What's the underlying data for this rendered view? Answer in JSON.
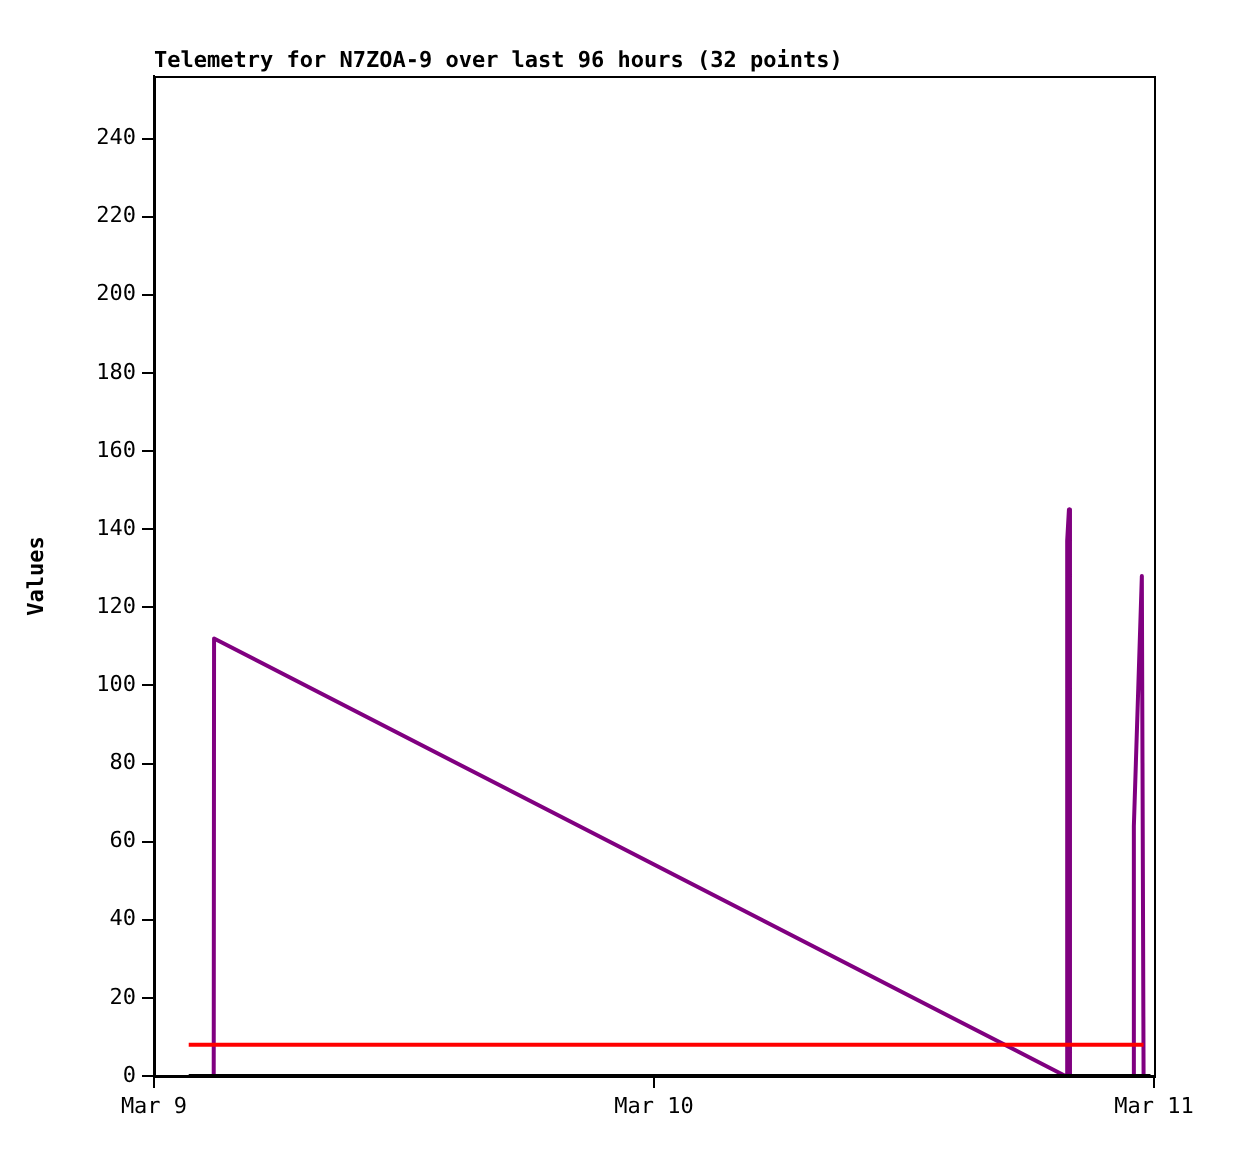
{
  "chart_data": {
    "type": "line",
    "title": "Telemetry for N7ZOA-9 over last 96 hours (32 points)",
    "ylabel": "Values",
    "xlim": [
      "--03-09",
      "--03-11"
    ],
    "xticks": [
      {
        "value": "--03-09",
        "label": "Mar 9"
      },
      {
        "value": "--03-10",
        "label": "Mar 10"
      },
      {
        "value": "--03-11",
        "label": "Mar 11"
      }
    ],
    "ylim": [
      0,
      256
    ],
    "yticks": [
      0,
      20,
      40,
      60,
      80,
      100,
      120,
      140,
      160,
      180,
      200,
      220,
      240
    ],
    "grid": false,
    "legend": false,
    "marker": "none",
    "line_style": "solid",
    "series": [
      {
        "color": "#000000",
        "x": [
          "--03-09T01:40",
          "--03-10T23:50"
        ],
        "values": [
          0,
          0
        ]
      },
      {
        "color": "#ff0000",
        "x": [
          "--03-09T01:40",
          "--03-10T23:30"
        ],
        "values": [
          8,
          8
        ]
      },
      {
        "color": "#800080",
        "x": [
          "--03-09T02:52",
          "--03-09T02:53",
          "--03-10T19:45",
          "--03-10T19:50",
          "--03-10T19:50",
          "--03-10T19:55",
          "--03-10T19:58",
          "--03-10T23:00",
          "--03-10T23:02",
          "--03-10T23:25",
          "--03-10T23:30"
        ],
        "values": [
          0,
          112,
          0,
          0,
          137,
          145,
          0,
          0,
          64,
          128,
          0
        ]
      }
    ]
  }
}
